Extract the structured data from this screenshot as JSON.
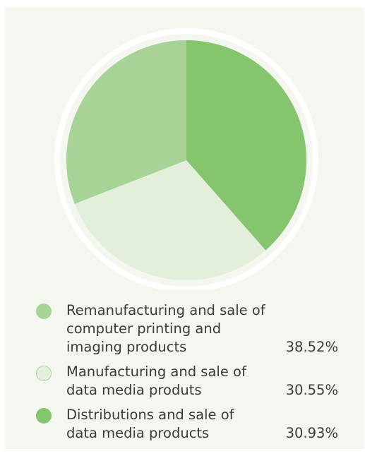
{
  "chart_data": {
    "type": "pie",
    "title": "",
    "legend_placement": "bottom",
    "start_angle_deg": 0,
    "direction": "clockwise",
    "slices": [
      {
        "name": "Remanufacturing and sale of\ncomputer printing and\nimaging products",
        "value": 38.52,
        "display_value": "38.52%",
        "color": "#85c56e",
        "legend_marker_color": "#a7d396",
        "slice_order": 1
      },
      {
        "name": "Manufacturing and sale of\ndata media produts",
        "value": 30.55,
        "display_value": "30.55%",
        "color": "#e3efdb",
        "legend_marker_color": "#e3efdb",
        "slice_order": 2
      },
      {
        "name": "Distributions and sale of\ndata media products",
        "value": 30.93,
        "display_value": "30.93%",
        "color": "#a7d396",
        "legend_marker_color": "#85c56e",
        "slice_order": 3
      }
    ],
    "legend": [
      {
        "label": "Remanufacturing and sale of\ncomputer printing and\nimaging products",
        "value": "38.52%",
        "color": "#a7d396"
      },
      {
        "label": "Manufacturing and sale of\ndata media produts",
        "value": "30.55%",
        "color": "#e3efdb"
      },
      {
        "label": "Distributions and sale of\ndata media products",
        "value": "30.93%",
        "color": "#85c56e"
      }
    ]
  }
}
